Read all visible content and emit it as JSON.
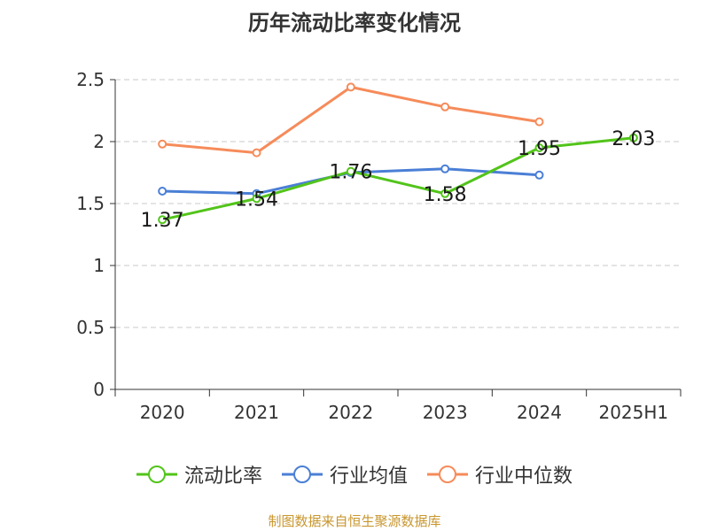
{
  "chart_data": {
    "type": "line",
    "title": "历年流动比率变化情况",
    "categories": [
      "2020",
      "2021",
      "2022",
      "2023",
      "2024",
      "2025H1"
    ],
    "ylim": [
      0,
      2.5
    ],
    "yticks": [
      "0",
      "0.5",
      "1",
      "1.5",
      "2",
      "2.5"
    ],
    "grid": true,
    "legend_position": "bottom",
    "series": [
      {
        "name": "流动比率",
        "color": "#52c41a",
        "values": [
          1.37,
          1.54,
          1.76,
          1.58,
          1.95,
          2.03
        ],
        "labels": [
          "1.37",
          "1.54",
          "1.76",
          "1.58",
          "1.95",
          "2.03"
        ]
      },
      {
        "name": "行业均值",
        "color": "#4a7fd6",
        "values": [
          1.6,
          1.58,
          1.75,
          1.78,
          1.73,
          null
        ]
      },
      {
        "name": "行业中位数",
        "color": "#f68b5a",
        "values": [
          1.98,
          1.91,
          2.44,
          2.28,
          2.16,
          null
        ]
      }
    ]
  },
  "source_note": "制图数据来自恒生聚源数据库"
}
